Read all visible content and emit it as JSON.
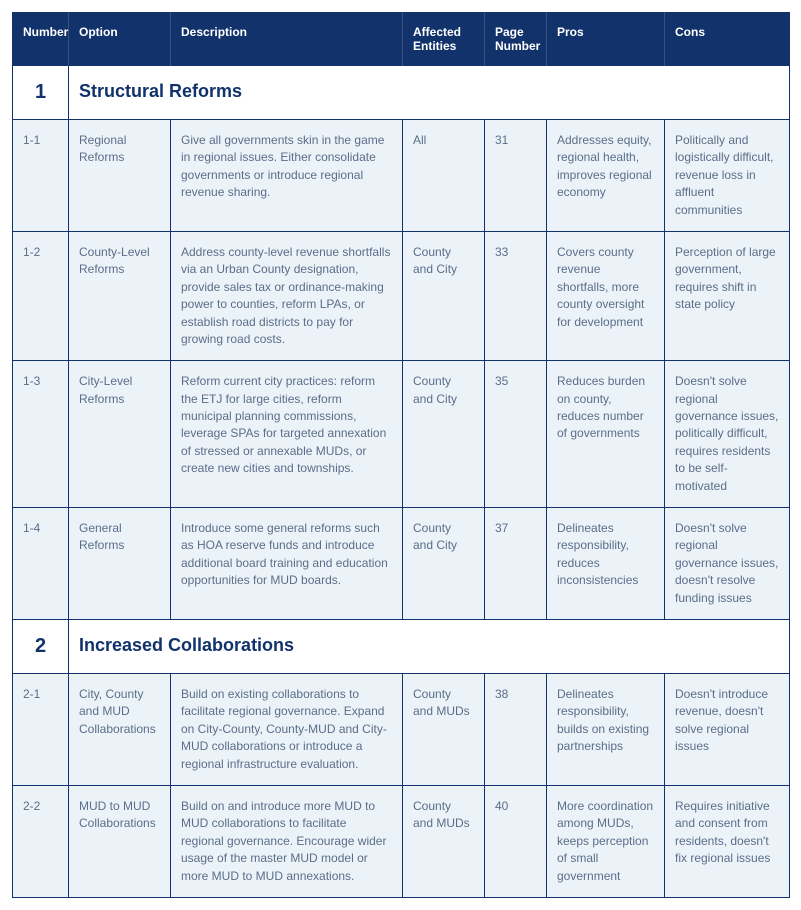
{
  "headers": {
    "number": "Number",
    "option": "Option",
    "description": "Description",
    "affected": "Affected Entities",
    "page": "Page Number",
    "pros": "Pros",
    "cons": "Cons"
  },
  "sections": [
    {
      "num": "1",
      "title": "Structural Reforms",
      "rows": [
        {
          "num": "1-1",
          "option": "Regional Reforms",
          "desc": "Give all governments skin in the game in regional issues. Either consolidate governments or introduce regional revenue sharing.",
          "affected": "All",
          "page": "31",
          "pros": "Addresses equity, regional health, improves regional economy",
          "cons": "Politically and logistically difficult, revenue loss in affluent communities"
        },
        {
          "num": "1-2",
          "option": "County-Level Reforms",
          "desc": "Address county-level revenue shortfalls via an Urban County designation, provide sales tax or ordinance-making power to counties, reform LPAs, or establish road districts to pay for growing road costs.",
          "affected": "County and City",
          "page": "33",
          "pros": "Covers county revenue shortfalls, more county oversight for development",
          "cons": "Perception of large government, requires shift in state policy"
        },
        {
          "num": "1-3",
          "option": "City-Level Reforms",
          "desc": "Reform current city practices: reform the ETJ for large cities, reform municipal planning commissions, leverage SPAs for targeted annexation of stressed or annexable MUDs, or create new cities and townships.",
          "affected": "County and City",
          "page": "35",
          "pros": "Reduces burden on county, reduces number of governments",
          "cons": "Doesn't solve regional governance issues, politically difficult, requires residents to be self-motivated"
        },
        {
          "num": "1-4",
          "option": "General Reforms",
          "desc": "Introduce some general reforms such as HOA reserve funds and introduce additional board training and education opportunities for MUD boards.",
          "affected": "County and City",
          "page": "37",
          "pros": "Delineates responsibility, reduces inconsistencies",
          "cons": "Doesn't solve regional governance issues, doesn't resolve funding issues"
        }
      ]
    },
    {
      "num": "2",
      "title": "Increased Collaborations",
      "rows": [
        {
          "num": "2-1",
          "option": "City, County and MUD Collaborations",
          "desc": "Build on existing collaborations to facilitate regional governance. Expand on City-County, County-MUD and City-MUD collaborations or introduce a regional infrastructure evaluation.",
          "affected": "County and MUDs",
          "page": "38",
          "pros": "Delineates responsibility, builds on existing partnerships",
          "cons": "Doesn't introduce revenue, doesn't solve regional issues"
        },
        {
          "num": "2-2",
          "option": "MUD to MUD Collaborations",
          "desc": "Build on and introduce more MUD to MUD collaborations to facilitate regional governance. Encourage wider usage of the master MUD model or more MUD to MUD annexations.",
          "affected": "County and MUDs",
          "page": "40",
          "pros": "More coordination among MUDs, keeps perception of small government",
          "cons": "Requires initiative and consent from residents, doesn't fix regional issues"
        }
      ]
    }
  ]
}
